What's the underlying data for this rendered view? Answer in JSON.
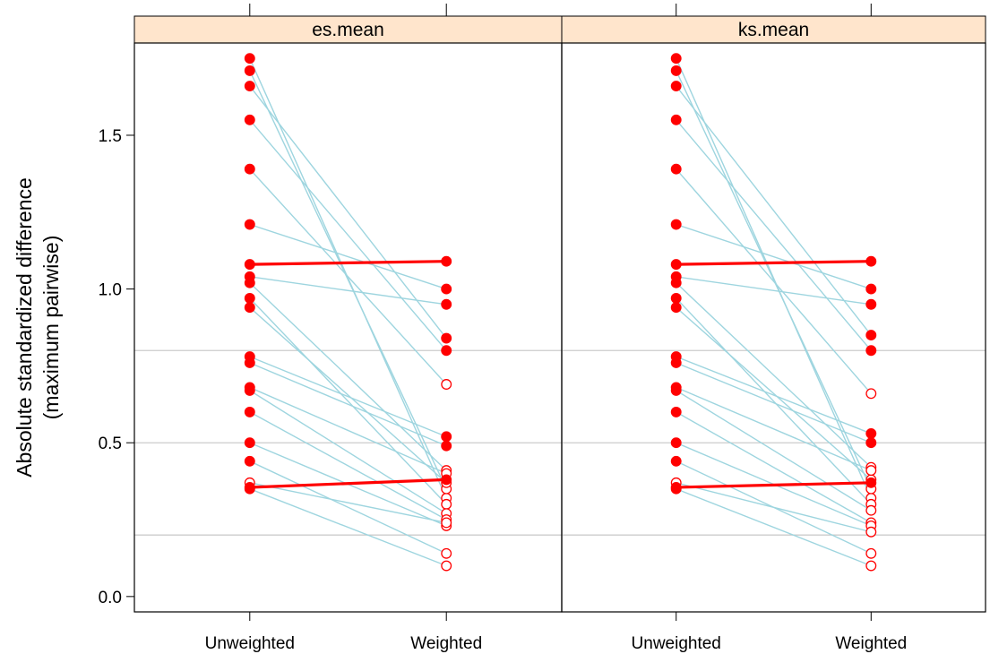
{
  "chart_data": {
    "type": "line",
    "ylabel_lines": [
      "Absolute standardized difference",
      "(maximum pairwise)"
    ],
    "ylim": [
      -0.05,
      1.8
    ],
    "y_ticks": [
      0.0,
      0.5,
      1.0,
      1.5
    ],
    "y_tick_labels": [
      "0.0",
      "0.5",
      "1.0",
      "1.5"
    ],
    "x_categories": [
      "Unweighted",
      "Weighted"
    ],
    "reference_lines": [
      0.2,
      0.5,
      0.8
    ],
    "grid": false,
    "colors": {
      "strip": "#ffe5cc",
      "line": "#9ed5df",
      "highlight": "#ff0000",
      "point": "#ff0000",
      "refline": "#cccccc"
    },
    "panels": [
      {
        "strip_label": "es.mean",
        "segments": [
          {
            "unweighted": 1.75,
            "weighted": 0.32,
            "unweighted_sig": true,
            "weighted_sig": false
          },
          {
            "unweighted": 1.71,
            "weighted": 0.35,
            "unweighted_sig": true,
            "weighted_sig": false
          },
          {
            "unweighted": 1.66,
            "weighted": 0.84,
            "unweighted_sig": true,
            "weighted_sig": true
          },
          {
            "unweighted": 1.55,
            "weighted": 0.8,
            "unweighted_sig": true,
            "weighted_sig": true
          },
          {
            "unweighted": 1.39,
            "weighted": 0.69,
            "unweighted_sig": true,
            "weighted_sig": false
          },
          {
            "unweighted": 1.21,
            "weighted": 1.0,
            "unweighted_sig": true,
            "weighted_sig": true
          },
          {
            "unweighted": 1.08,
            "weighted": 1.09,
            "unweighted_sig": true,
            "weighted_sig": true,
            "highlight": true
          },
          {
            "unweighted": 1.04,
            "weighted": 0.95,
            "unweighted_sig": true,
            "weighted_sig": true
          },
          {
            "unweighted": 1.02,
            "weighted": 0.41,
            "unweighted_sig": true,
            "weighted_sig": false
          },
          {
            "unweighted": 0.97,
            "weighted": 0.3,
            "unweighted_sig": true,
            "weighted_sig": false
          },
          {
            "unweighted": 0.94,
            "weighted": 0.37,
            "unweighted_sig": true,
            "weighted_sig": false
          },
          {
            "unweighted": 0.78,
            "weighted": 0.52,
            "unweighted_sig": true,
            "weighted_sig": true
          },
          {
            "unweighted": 0.76,
            "weighted": 0.49,
            "unweighted_sig": true,
            "weighted_sig": true
          },
          {
            "unweighted": 0.68,
            "weighted": 0.4,
            "unweighted_sig": true,
            "weighted_sig": false
          },
          {
            "unweighted": 0.67,
            "weighted": 0.27,
            "unweighted_sig": true,
            "weighted_sig": false
          },
          {
            "unweighted": 0.6,
            "weighted": 0.25,
            "unweighted_sig": true,
            "weighted_sig": false
          },
          {
            "unweighted": 0.5,
            "weighted": 0.23,
            "unweighted_sig": true,
            "weighted_sig": false
          },
          {
            "unweighted": 0.44,
            "weighted": 0.14,
            "unweighted_sig": true,
            "weighted_sig": false
          },
          {
            "unweighted": 0.37,
            "weighted": 0.24,
            "unweighted_sig": false,
            "weighted_sig": false
          },
          {
            "unweighted": 0.35,
            "weighted": 0.1,
            "unweighted_sig": true,
            "weighted_sig": false
          },
          {
            "unweighted": 0.355,
            "weighted": 0.38,
            "unweighted_sig": true,
            "weighted_sig": true,
            "highlight": true
          }
        ]
      },
      {
        "strip_label": "ks.mean",
        "segments": [
          {
            "unweighted": 1.75,
            "weighted": 0.32,
            "unweighted_sig": true,
            "weighted_sig": false
          },
          {
            "unweighted": 1.71,
            "weighted": 0.35,
            "unweighted_sig": true,
            "weighted_sig": false
          },
          {
            "unweighted": 1.66,
            "weighted": 0.85,
            "unweighted_sig": true,
            "weighted_sig": true
          },
          {
            "unweighted": 1.55,
            "weighted": 0.8,
            "unweighted_sig": true,
            "weighted_sig": true
          },
          {
            "unweighted": 1.39,
            "weighted": 0.66,
            "unweighted_sig": true,
            "weighted_sig": false
          },
          {
            "unweighted": 1.21,
            "weighted": 1.0,
            "unweighted_sig": true,
            "weighted_sig": true
          },
          {
            "unweighted": 1.08,
            "weighted": 1.09,
            "unweighted_sig": true,
            "weighted_sig": true,
            "highlight": true
          },
          {
            "unweighted": 1.04,
            "weighted": 0.95,
            "unweighted_sig": true,
            "weighted_sig": true
          },
          {
            "unweighted": 1.02,
            "weighted": 0.42,
            "unweighted_sig": true,
            "weighted_sig": false
          },
          {
            "unweighted": 0.97,
            "weighted": 0.3,
            "unweighted_sig": true,
            "weighted_sig": false
          },
          {
            "unweighted": 0.94,
            "weighted": 0.38,
            "unweighted_sig": true,
            "weighted_sig": false
          },
          {
            "unweighted": 0.78,
            "weighted": 0.53,
            "unweighted_sig": true,
            "weighted_sig": true
          },
          {
            "unweighted": 0.76,
            "weighted": 0.5,
            "unweighted_sig": true,
            "weighted_sig": true
          },
          {
            "unweighted": 0.68,
            "weighted": 0.41,
            "unweighted_sig": true,
            "weighted_sig": false
          },
          {
            "unweighted": 0.67,
            "weighted": 0.28,
            "unweighted_sig": true,
            "weighted_sig": false
          },
          {
            "unweighted": 0.6,
            "weighted": 0.24,
            "unweighted_sig": true,
            "weighted_sig": false
          },
          {
            "unweighted": 0.5,
            "weighted": 0.23,
            "unweighted_sig": true,
            "weighted_sig": false
          },
          {
            "unweighted": 0.44,
            "weighted": 0.14,
            "unweighted_sig": true,
            "weighted_sig": false
          },
          {
            "unweighted": 0.37,
            "weighted": 0.21,
            "unweighted_sig": false,
            "weighted_sig": false
          },
          {
            "unweighted": 0.35,
            "weighted": 0.1,
            "unweighted_sig": true,
            "weighted_sig": false
          },
          {
            "unweighted": 0.355,
            "weighted": 0.37,
            "unweighted_sig": true,
            "weighted_sig": true,
            "highlight": true
          }
        ]
      }
    ]
  }
}
